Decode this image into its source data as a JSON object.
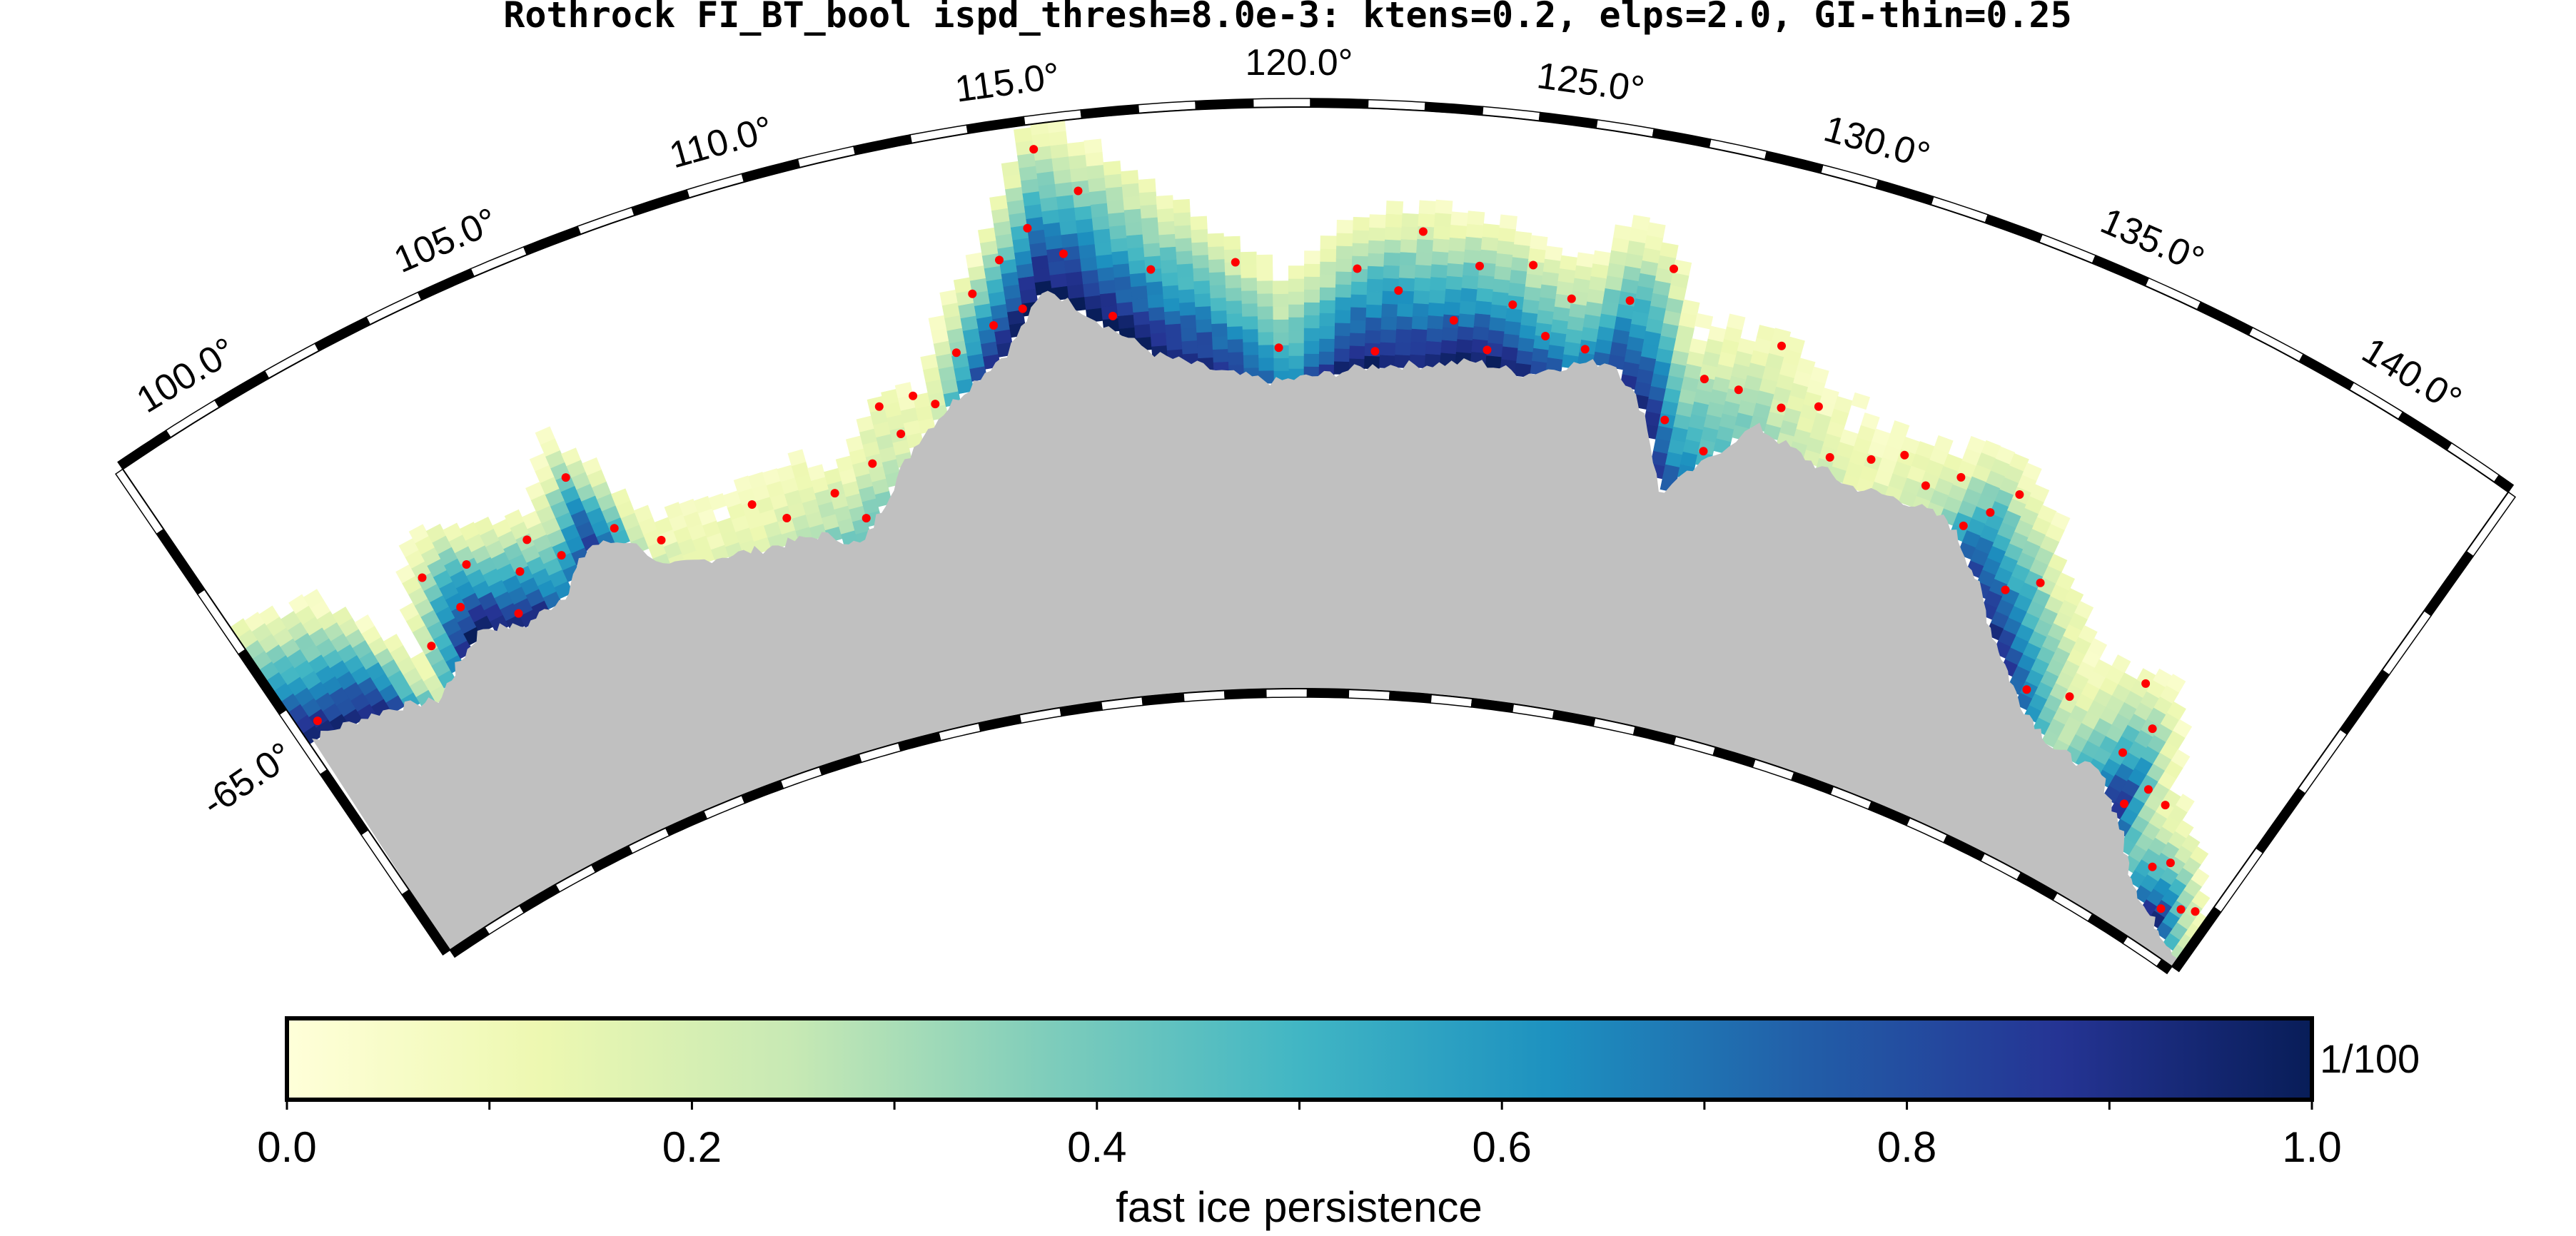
{
  "title": "Rothrock FI_BT_bool ispd_thresh=8.0e-3: ktens=0.2, elps=2.0, GI-thin=0.25",
  "map": {
    "lon_labels": [
      "100.0°",
      "105.0°",
      "110.0°",
      "115.0°",
      "120.0°",
      "125.0°",
      "130.0°",
      "135.0°",
      "140.0°"
    ],
    "lat_label": "-65.0°",
    "land_color": "#c0c0c0",
    "grounded_iceberg_color": "#ff0000"
  },
  "colorbar": {
    "ticks": [
      "0.0",
      "0.2",
      "0.4",
      "0.6",
      "0.8",
      "1.0"
    ],
    "label": "fast ice persistence",
    "unit": "1/100",
    "colormap": [
      "#ffffd9",
      "#edf8b1",
      "#c7e9b4",
      "#7fcdbb",
      "#41b6c4",
      "#1d91c0",
      "#225ea8",
      "#253494",
      "#081d58"
    ]
  }
}
